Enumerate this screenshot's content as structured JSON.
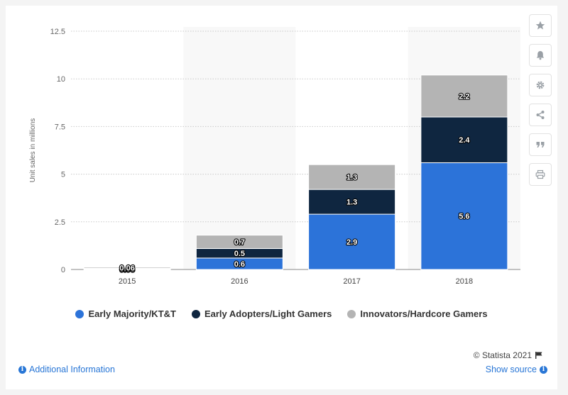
{
  "chart_data": {
    "type": "bar",
    "stacked": true,
    "categories": [
      "2015",
      "2016",
      "2017",
      "2018"
    ],
    "series": [
      {
        "name": "Early Majority/KT&T",
        "color": "#2c73d9",
        "values": [
          0.03,
          0.6,
          2.9,
          5.6
        ],
        "labels": [
          "0.03",
          "0.6",
          "2.9",
          "5.6"
        ]
      },
      {
        "name": "Early Adopters/Light Gamers",
        "color": "#0f2640",
        "values": [
          0.03,
          0.5,
          1.3,
          2.4
        ],
        "labels": [
          "0.03",
          "0.5",
          "1.3",
          "2.4"
        ]
      },
      {
        "name": "Innovators/Hardcore Gamers",
        "color": "#b4b4b4",
        "values": [
          0.06,
          0.7,
          1.3,
          2.2
        ],
        "labels": [
          "0.06",
          "0.7",
          "1.3",
          "2.2"
        ]
      }
    ],
    "ylabel": "Unit sales in millions",
    "xlabel": "",
    "ylim": [
      0,
      12.5
    ],
    "yticks": [
      "0",
      "2.5",
      "5",
      "7.5",
      "10",
      "12.5"
    ],
    "grid": true,
    "legend_position": "bottom"
  },
  "legend": [
    {
      "label": "Early Majority/KT&T",
      "color": "#2c73d9"
    },
    {
      "label": "Early Adopters/Light Gamers",
      "color": "#0f2640"
    },
    {
      "label": "Innovators/Hardcore Gamers",
      "color": "#b4b4b4"
    }
  ],
  "credit": "© Statista 2021",
  "footer": {
    "additional_info": "Additional Information",
    "show_source": "Show source"
  },
  "sidebar_icons": [
    "star-icon",
    "bell-icon",
    "gear-icon",
    "share-icon",
    "quote-icon",
    "print-icon"
  ]
}
